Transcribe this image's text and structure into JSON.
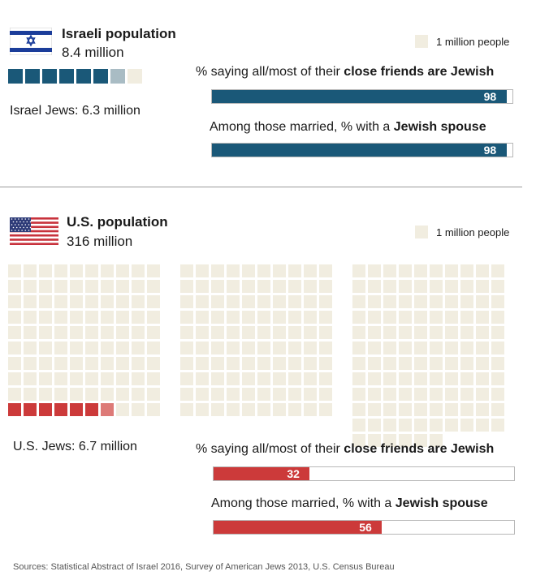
{
  "colors": {
    "israel": "#1a5878",
    "israel_partial": "#a9bcc4",
    "us": "#cc3a3a",
    "us_partial": "#dd7a77",
    "empty": "#f1ede0"
  },
  "legend_label": "1 million people",
  "israel": {
    "title": "Israeli population",
    "population_text": "8.4 million",
    "jews_text": "Israel Jews: 6.3 million",
    "q1_prefix": "% saying all/most of their ",
    "q1_bold": "close friends are Jewish",
    "q2_prefix": "Among those married, % with a ",
    "q2_bold": "Jewish spouse"
  },
  "us": {
    "title": "U.S. population",
    "population_text": "316 million",
    "jews_text": "U.S. Jews: 6.7 million",
    "q1_prefix": "% saying all/most of their ",
    "q1_bold": "close friends are Jewish",
    "q2_prefix": "Among those married, % with a ",
    "q2_bold": "Jewish spouse"
  },
  "source": "Sources: Statistical Abstract of Israel 2016, Survey of American Jews 2013, U.S. Census Bureau",
  "chart_data": [
    {
      "type": "waffle",
      "unit": "1 million people",
      "population": "Israeli population",
      "total_millions": 8.4,
      "jewish_millions": 6.3
    },
    {
      "type": "bar",
      "population": "Israel Jews",
      "categories": [
        "% saying all/most of their close friends are Jewish",
        "Among those married, % with a Jewish spouse"
      ],
      "values": [
        98,
        98
      ],
      "ylim": [
        0,
        100
      ]
    },
    {
      "type": "waffle",
      "unit": "1 million people",
      "population": "U.S. population",
      "total_millions": 316,
      "jewish_millions": 6.7
    },
    {
      "type": "bar",
      "population": "U.S. Jews",
      "categories": [
        "% saying all/most of their close friends are Jewish",
        "Among those married, % with a Jewish spouse"
      ],
      "values": [
        32,
        56
      ],
      "ylim": [
        0,
        100
      ]
    }
  ]
}
